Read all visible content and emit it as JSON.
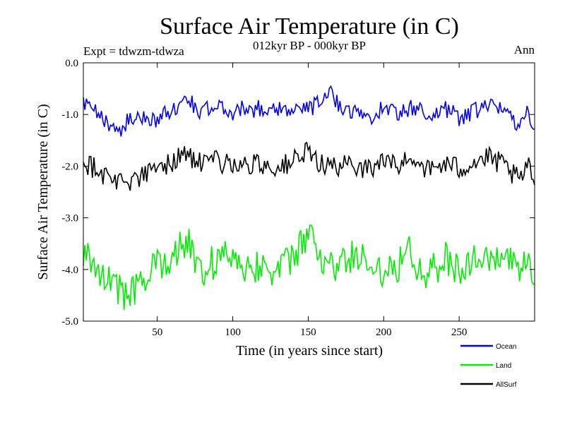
{
  "header": {
    "title": "Surface Air Temperature (in C)",
    "subtitle": "012kyr BP - 000kyr BP",
    "experiment": "Expt = tdwzm-tdwza",
    "season": "Ann"
  },
  "chart_data": {
    "type": "line",
    "xlabel": "Time (in years since start)",
    "ylabel": "Surface Air Temperature (in C)",
    "xlim": [
      1,
      300
    ],
    "ylim": [
      -5.0,
      0.0
    ],
    "x_ticks": [
      50,
      100,
      150,
      200,
      250
    ],
    "y_ticks": [
      0.0,
      -1.0,
      -2.0,
      -3.0,
      -4.0,
      -5.0
    ],
    "y_tick_labels": [
      "0.0",
      "-1.0",
      "-2.0",
      "-3.0",
      "-4.0",
      "-5.0"
    ],
    "grid": false,
    "legend_position": "bottom-right, below plot",
    "series": [
      {
        "name": "Ocean",
        "color": "#0000ff",
        "mean": -1.0,
        "amplitude": 0.35,
        "anchors": [
          [
            1,
            -0.8
          ],
          [
            10,
            -1.0
          ],
          [
            20,
            -1.2
          ],
          [
            25,
            -1.3
          ],
          [
            30,
            -1.15
          ],
          [
            40,
            -1.05
          ],
          [
            50,
            -1.1
          ],
          [
            60,
            -0.9
          ],
          [
            70,
            -0.72
          ],
          [
            80,
            -0.95
          ],
          [
            90,
            -0.85
          ],
          [
            100,
            -0.95
          ],
          [
            110,
            -0.88
          ],
          [
            120,
            -0.9
          ],
          [
            130,
            -0.85
          ],
          [
            140,
            -0.95
          ],
          [
            150,
            -0.88
          ],
          [
            160,
            -0.75
          ],
          [
            165,
            -0.6
          ],
          [
            170,
            -0.78
          ],
          [
            180,
            -0.95
          ],
          [
            190,
            -1.05
          ],
          [
            200,
            -0.88
          ],
          [
            210,
            -0.95
          ],
          [
            220,
            -0.88
          ],
          [
            230,
            -1.0
          ],
          [
            240,
            -0.9
          ],
          [
            250,
            -1.05
          ],
          [
            260,
            -0.95
          ],
          [
            270,
            -0.85
          ],
          [
            280,
            -0.9
          ],
          [
            290,
            -1.2
          ],
          [
            295,
            -0.95
          ],
          [
            300,
            -1.15
          ]
        ]
      },
      {
        "name": "Land",
        "color": "#00ee00",
        "mean": -4.0,
        "amplitude": 0.7,
        "anchors": [
          [
            1,
            -3.7
          ],
          [
            10,
            -3.9
          ],
          [
            20,
            -4.3
          ],
          [
            30,
            -4.5
          ],
          [
            40,
            -4.3
          ],
          [
            50,
            -3.9
          ],
          [
            60,
            -3.7
          ],
          [
            70,
            -3.5
          ],
          [
            80,
            -4.0
          ],
          [
            90,
            -3.8
          ],
          [
            100,
            -3.7
          ],
          [
            110,
            -3.95
          ],
          [
            120,
            -3.9
          ],
          [
            130,
            -4.05
          ],
          [
            140,
            -3.8
          ],
          [
            150,
            -3.3
          ],
          [
            155,
            -3.6
          ],
          [
            160,
            -3.85
          ],
          [
            170,
            -4.0
          ],
          [
            180,
            -3.7
          ],
          [
            190,
            -3.9
          ],
          [
            200,
            -4.0
          ],
          [
            210,
            -3.9
          ],
          [
            215,
            -3.4
          ],
          [
            220,
            -3.8
          ],
          [
            230,
            -4.1
          ],
          [
            240,
            -3.8
          ],
          [
            250,
            -4.0
          ],
          [
            260,
            -3.8
          ],
          [
            270,
            -3.9
          ],
          [
            280,
            -3.7
          ],
          [
            290,
            -4.2
          ],
          [
            295,
            -3.8
          ],
          [
            300,
            -4.3
          ]
        ]
      },
      {
        "name": "AllSurf",
        "color": "#000000",
        "mean": -2.0,
        "amplitude": 0.45,
        "anchors": [
          [
            1,
            -1.9
          ],
          [
            10,
            -2.05
          ],
          [
            20,
            -2.25
          ],
          [
            30,
            -2.3
          ],
          [
            40,
            -2.2
          ],
          [
            50,
            -2.05
          ],
          [
            60,
            -1.9
          ],
          [
            70,
            -1.75
          ],
          [
            80,
            -2.0
          ],
          [
            90,
            -1.9
          ],
          [
            100,
            -1.95
          ],
          [
            110,
            -2.0
          ],
          [
            120,
            -1.95
          ],
          [
            130,
            -2.05
          ],
          [
            140,
            -1.9
          ],
          [
            150,
            -1.75
          ],
          [
            160,
            -1.95
          ],
          [
            170,
            -2.05
          ],
          [
            180,
            -1.95
          ],
          [
            190,
            -2.05
          ],
          [
            200,
            -1.9
          ],
          [
            210,
            -2.0
          ],
          [
            220,
            -1.8
          ],
          [
            230,
            -2.1
          ],
          [
            240,
            -1.95
          ],
          [
            250,
            -2.05
          ],
          [
            260,
            -1.9
          ],
          [
            270,
            -1.85
          ],
          [
            280,
            -2.0
          ],
          [
            290,
            -2.3
          ],
          [
            295,
            -2.0
          ],
          [
            300,
            -2.25
          ]
        ]
      }
    ]
  }
}
